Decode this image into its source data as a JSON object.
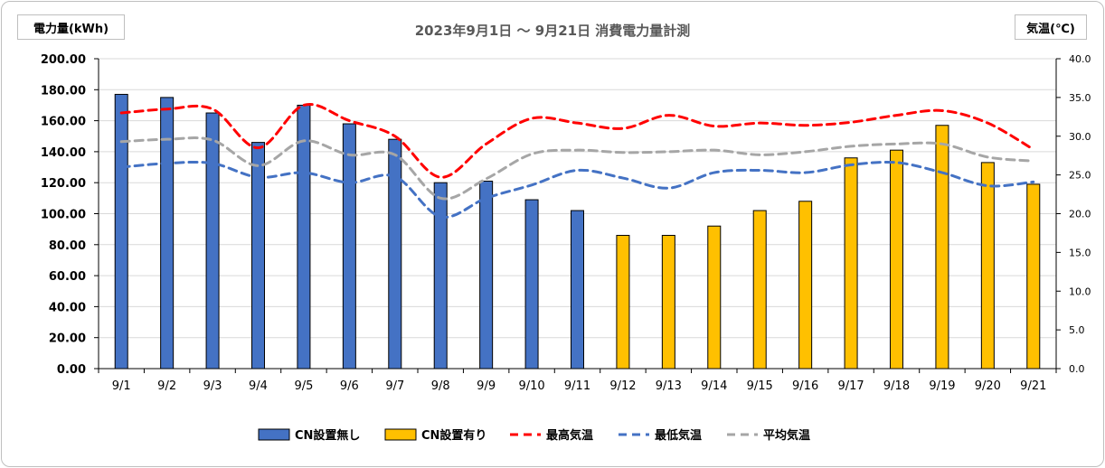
{
  "chart_data": {
    "type": "bar",
    "title": "2023年9月1日 ～ 9月21日 消費電力量計測",
    "ylabel": "電力量(kWh)",
    "y2label": "気温(℃)",
    "categories": [
      "9/1",
      "9/2",
      "9/3",
      "9/4",
      "9/5",
      "9/6",
      "9/7",
      "9/8",
      "9/9",
      "9/10",
      "9/11",
      "9/12",
      "9/13",
      "9/14",
      "9/15",
      "9/16",
      "9/17",
      "9/18",
      "9/19",
      "9/20",
      "9/21"
    ],
    "ylim": [
      0,
      200
    ],
    "y2lim": [
      0,
      40
    ],
    "yticks": [
      "0.00",
      "20.00",
      "40.00",
      "60.00",
      "80.00",
      "100.00",
      "120.00",
      "140.00",
      "160.00",
      "180.00",
      "200.00"
    ],
    "y2ticks": [
      "0.0",
      "5.0",
      "10.0",
      "15.0",
      "20.0",
      "25.0",
      "30.0",
      "35.0",
      "40.0"
    ],
    "grid": true,
    "legend_position": "bottom",
    "bar_series": [
      {
        "name": "CN設置無し",
        "color": "#4472c4",
        "values": [
          177,
          175,
          165,
          146,
          170,
          158,
          148,
          120,
          121,
          109,
          102,
          null,
          null,
          null,
          null,
          null,
          null,
          null,
          null,
          null,
          null
        ]
      },
      {
        "name": "CN設置有り",
        "color": "#ffc000",
        "values": [
          null,
          null,
          null,
          null,
          null,
          null,
          null,
          null,
          null,
          null,
          null,
          86,
          86,
          92,
          102,
          108,
          136,
          141,
          157,
          133,
          119
        ]
      }
    ],
    "line_series": [
      {
        "name": "最高気温",
        "color": "#ff0000",
        "values": [
          33.0,
          33.5,
          33.5,
          28.5,
          34.0,
          32.0,
          30.0,
          24.7,
          29.0,
          32.3,
          31.7,
          31.0,
          32.7,
          31.3,
          31.7,
          31.4,
          31.8,
          32.7,
          33.3,
          31.7,
          28.3
        ]
      },
      {
        "name": "最低気温",
        "color": "#4472c4",
        "values": [
          26.0,
          26.5,
          26.5,
          24.7,
          25.3,
          24.0,
          24.8,
          19.6,
          22.0,
          23.7,
          25.6,
          24.6,
          23.3,
          25.3,
          25.6,
          25.3,
          26.3,
          26.6,
          25.3,
          23.6,
          24.1
        ]
      },
      {
        "name": "平均気温",
        "color": "#a6a6a6",
        "values": [
          29.3,
          29.6,
          29.5,
          26.2,
          29.4,
          27.6,
          27.6,
          22.0,
          24.5,
          27.7,
          28.2,
          27.9,
          28.0,
          28.2,
          27.6,
          28.0,
          28.7,
          29.0,
          29.0,
          27.3,
          26.8
        ]
      }
    ]
  }
}
